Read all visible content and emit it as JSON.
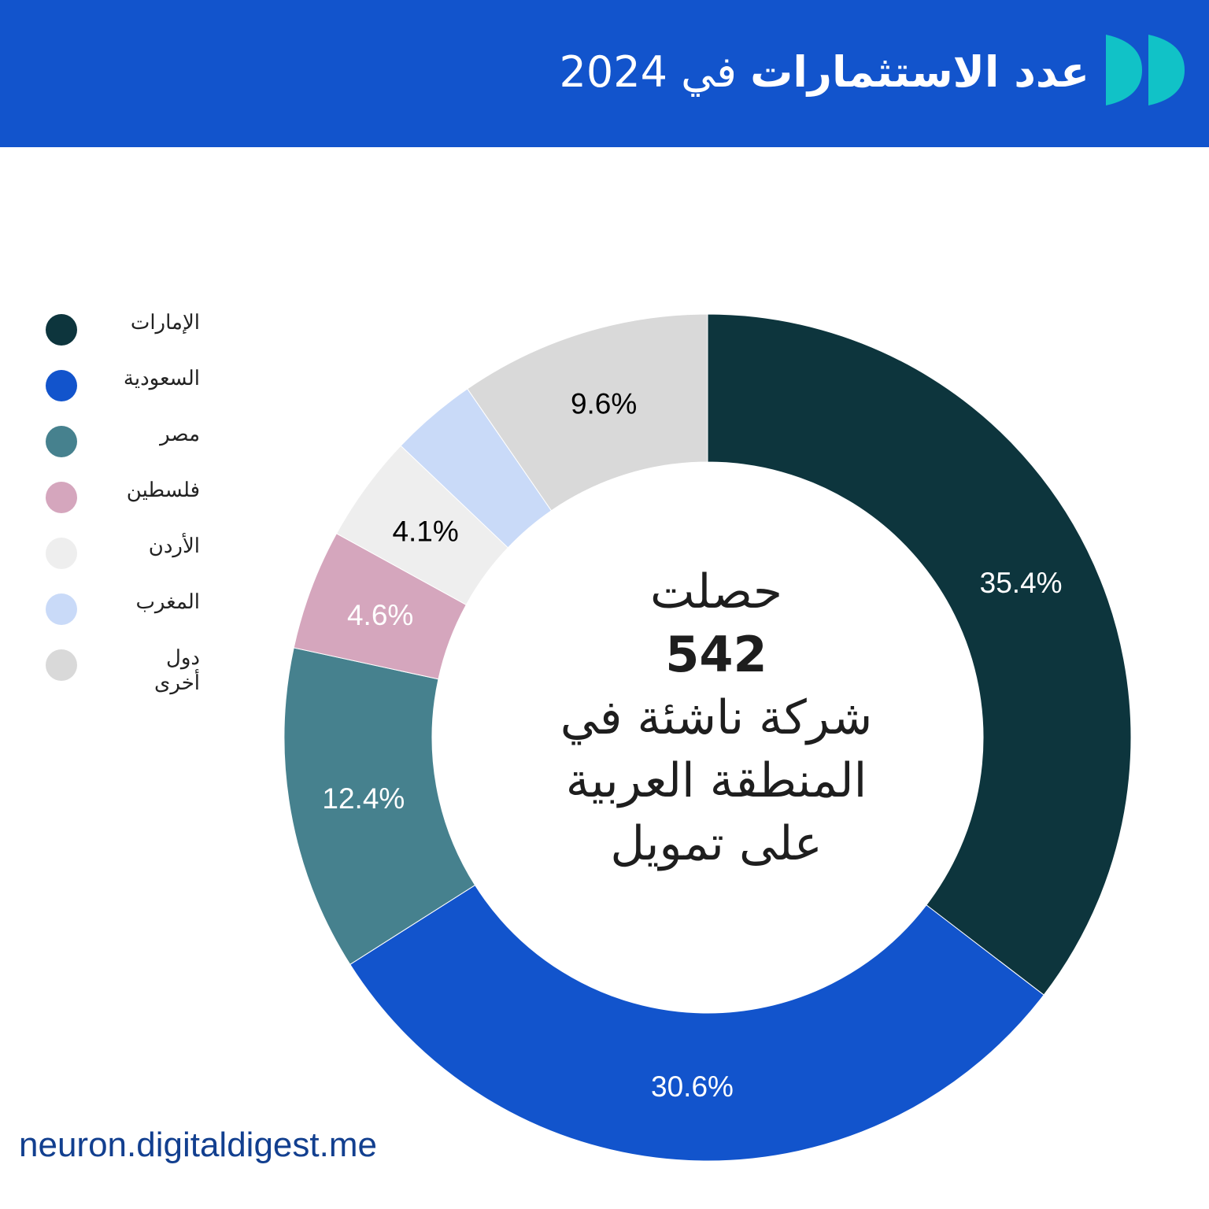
{
  "header": {
    "title_main": "عدد الاستثمارات",
    "title_rest": "في 2024",
    "background": "#1254cc",
    "logo_icon": "double-chevron-logo"
  },
  "center": {
    "line1": "حصلت",
    "number": "542",
    "line3": "شركة ناشئة في",
    "line4": "المنطقة العربية",
    "line5": "على تمويل"
  },
  "footer": {
    "url": "neuron.digitaldigest.me"
  },
  "chart_data": {
    "type": "pie",
    "categories": [
      "الإمارات",
      "السعودية",
      "مصر",
      "فلسطين",
      "الأردن",
      "المغرب",
      "دول أخرى"
    ],
    "values": [
      35.4,
      30.6,
      12.4,
      4.6,
      4.1,
      3.3,
      9.6
    ],
    "labels": [
      "35.4%",
      "30.6%",
      "12.4%",
      "4.6%",
      "4.1%",
      "",
      "9.6%"
    ],
    "colors": [
      "#0d353d",
      "#1254cc",
      "#46818e",
      "#d5a6bd",
      "#eeeeee",
      "#c9daf8",
      "#d9d9d9"
    ],
    "label_colors": [
      "#ffffff",
      "#ffffff",
      "#ffffff",
      "#ffffff",
      "#000000",
      "#000000",
      "#000000"
    ],
    "legend_position": "left",
    "donut": true
  }
}
